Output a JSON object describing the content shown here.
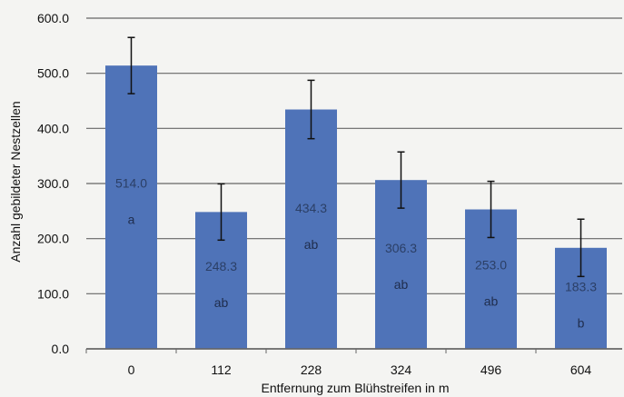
{
  "chart_data": {
    "type": "bar",
    "title": "",
    "xlabel": "Entfernung zum Blühstreifen in m",
    "ylabel": "Anzahl gebildeter Nestzellen",
    "categories": [
      "0",
      "112",
      "228",
      "324",
      "496",
      "604"
    ],
    "values": [
      514.0,
      248.3,
      434.3,
      306.3,
      253.0,
      183.3
    ],
    "value_labels": [
      "514.0",
      "248.3",
      "434.3",
      "306.3",
      "253.0",
      "183.3"
    ],
    "errors": [
      51,
      51,
      53,
      51,
      51,
      52
    ],
    "significance_letters": [
      "a",
      "ab",
      "ab",
      "ab",
      "ab",
      "b"
    ],
    "ylim": [
      0,
      600
    ],
    "yticks": [
      0,
      100,
      200,
      300,
      400,
      500,
      600
    ],
    "ytick_labels": [
      "0.0",
      "100.0",
      "200.0",
      "300.0",
      "400.0",
      "500.0",
      "600.0"
    ],
    "grid": true,
    "legend": "none",
    "colors": {
      "bar": "#4f73b8",
      "grid": "#666666",
      "axis": "#666666",
      "error_bar": "#111111",
      "value_text": "#2b3f66"
    }
  }
}
